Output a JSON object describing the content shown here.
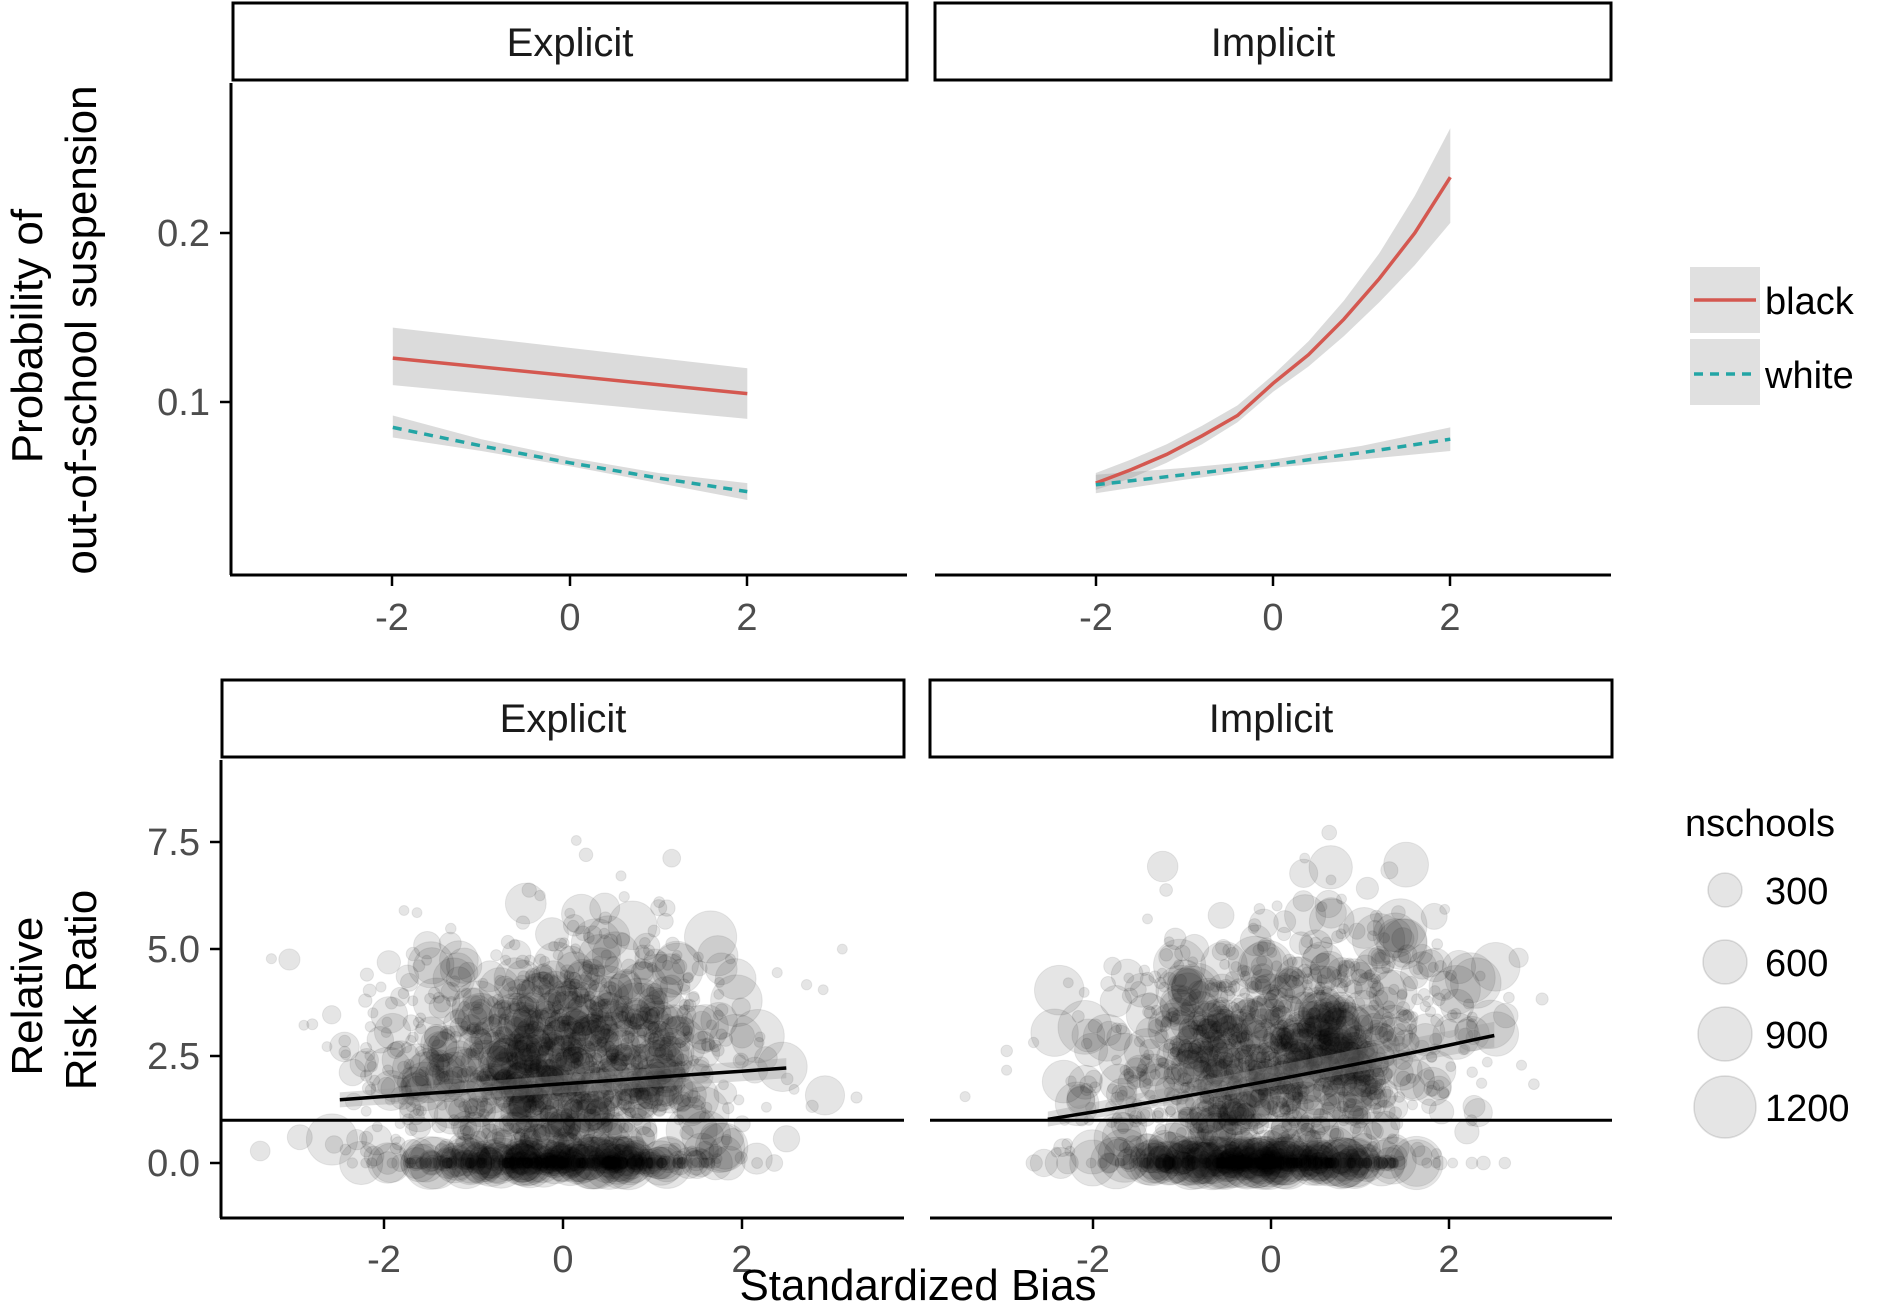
{
  "chart_data": [
    {
      "type": "line",
      "panel": "top",
      "ylabel": "Probability of\nout-of-school suspension",
      "xlabel": "",
      "yticks": [
        "0.1",
        "0.2"
      ],
      "xticks": [
        "-2",
        "0",
        "2"
      ],
      "ylim": [
        0.038,
        0.273
      ],
      "xlim": [
        -3.9,
        3.8
      ],
      "facets": [
        {
          "label": "Explicit",
          "series": [
            {
              "name": "black",
              "color": "#d45850",
              "linestyle": "solid",
              "x": [
                -2.5,
                2.5
              ],
              "y": [
                0.126,
                0.105
              ],
              "ci_lower": [
                0.11,
                0.09
              ],
              "ci_upper": [
                0.144,
                0.12
              ]
            },
            {
              "name": "white",
              "color": "#23a5a5",
              "linestyle": "dashed",
              "x": [
                -2.5,
                -1.25,
                0,
                1.25,
                2.5
              ],
              "y": [
                0.085,
                0.074,
                0.064,
                0.055,
                0.047
              ],
              "ci_lower": [
                0.079,
                0.071,
                0.062,
                0.052,
                0.042
              ],
              "ci_upper": [
                0.092,
                0.078,
                0.067,
                0.058,
                0.052
              ]
            }
          ]
        },
        {
          "label": "Implicit",
          "series": [
            {
              "name": "black",
              "color": "#d45850",
              "linestyle": "solid",
              "x": [
                -2.5,
                -2,
                -1.5,
                -1,
                -0.5,
                0,
                0.5,
                1,
                1.5,
                2,
                2.5
              ],
              "y": [
                0.052,
                0.06,
                0.069,
                0.08,
                0.092,
                0.111,
                0.128,
                0.149,
                0.173,
                0.2,
                0.233
              ],
              "ci_lower": [
                0.048,
                0.055,
                0.064,
                0.075,
                0.088,
                0.106,
                0.121,
                0.139,
                0.159,
                0.181,
                0.206
              ],
              "ci_upper": [
                0.058,
                0.066,
                0.075,
                0.086,
                0.098,
                0.116,
                0.136,
                0.16,
                0.188,
                0.222,
                0.262
              ]
            },
            {
              "name": "white",
              "color": "#23a5a5",
              "linestyle": "dashed",
              "x": [
                -2.5,
                -1.25,
                0,
                1.25,
                2.5
              ],
              "y": [
                0.051,
                0.057,
                0.063,
                0.07,
                0.078
              ],
              "ci_lower": [
                0.046,
                0.054,
                0.061,
                0.066,
                0.071
              ],
              "ci_upper": [
                0.057,
                0.061,
                0.066,
                0.074,
                0.085
              ]
            }
          ]
        }
      ]
    },
    {
      "type": "scatter",
      "panel": "bottom",
      "ylabel": "Relative\nRisk Ratio",
      "xlabel": "Standardized Bias",
      "yticks": [
        "0.0",
        "2.5",
        "5.0",
        "7.5"
      ],
      "xticks": [
        "-2",
        "0",
        "2"
      ],
      "ylim": [
        -0.5,
        9.5
      ],
      "xlim": [
        -3.9,
        3.8
      ],
      "reference_line_y": 1,
      "point_color": "#000000",
      "point_alpha": 0.1,
      "facets": [
        {
          "label": "Explicit",
          "fit": {
            "x": [
              -2.5,
              2.5
            ],
            "y": [
              1.48,
              2.22
            ],
            "ci_lower": [
              1.3,
              1.98
            ],
            "ci_upper": [
              1.65,
              2.45
            ]
          }
        },
        {
          "label": "Implicit",
          "fit": {
            "x": [
              -2.5,
              2.5
            ],
            "y": [
              1.02,
              2.98
            ],
            "ci_lower": [
              0.85,
              2.7
            ],
            "ci_upper": [
              1.2,
              3.3
            ]
          }
        }
      ],
      "size_legend": {
        "title": "nschools",
        "values": [
          300,
          600,
          900,
          1200
        ]
      }
    }
  ],
  "legend": {
    "entries": [
      {
        "label": "black",
        "color": "#d45850",
        "linestyle": "solid"
      },
      {
        "label": "white",
        "color": "#23a5a5",
        "linestyle": "dashed"
      }
    ]
  }
}
